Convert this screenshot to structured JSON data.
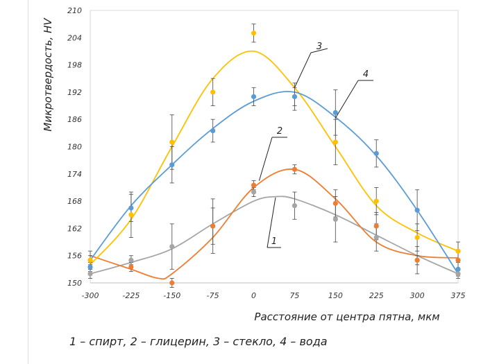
{
  "chart_data": {
    "type": "line",
    "title": "",
    "xlabel": "Расстояние от центра пятна, мкм",
    "ylabel": "Микротвердость, HV",
    "x": [
      -300,
      -225,
      -150,
      -75,
      0,
      75,
      150,
      225,
      300,
      375
    ],
    "x_ticks": [
      "-300",
      "-225",
      "-150",
      "-75",
      "0",
      "75",
      "150",
      "225",
      "300",
      "375"
    ],
    "y_ticks": [
      "150",
      "156",
      "162",
      "168",
      "174",
      "180",
      "186",
      "192",
      "198",
      "204",
      "210"
    ],
    "xlim": [
      -300,
      375
    ],
    "ylim": [
      150,
      210
    ],
    "grid": false,
    "series": [
      {
        "name": "1",
        "color": "#a5a5a5",
        "values": [
          152,
          155,
          158,
          162.5,
          170,
          167,
          164,
          160,
          155,
          152
        ],
        "errors": [
          1.0,
          1.0,
          5.0,
          6.0,
          1.0,
          3.0,
          5.0,
          3.0,
          3.0,
          1.0
        ],
        "trend": [
          [
            -300,
            152
          ],
          [
            -225,
            154.5
          ],
          [
            -150,
            157.5
          ],
          [
            -75,
            163
          ],
          [
            0,
            168
          ],
          [
            40,
            169
          ],
          [
            75,
            168.5
          ],
          [
            150,
            165
          ],
          [
            225,
            160.5
          ],
          [
            300,
            156
          ],
          [
            375,
            152
          ]
        ]
      },
      {
        "name": "2",
        "color": "#ed7d31",
        "values": [
          155,
          153.5,
          150,
          162.5,
          171.5,
          175,
          167.5,
          162.5,
          155,
          155
        ],
        "errors": [
          2.0,
          1.0,
          1.0,
          4.0,
          1.0,
          1.0,
          3.0,
          3.0,
          1.0,
          2.0
        ],
        "trend": [
          [
            -300,
            156
          ],
          [
            -225,
            153
          ],
          [
            -175,
            151
          ],
          [
            -150,
            152
          ],
          [
            -75,
            160
          ],
          [
            0,
            171
          ],
          [
            75,
            175
          ],
          [
            150,
            168.5
          ],
          [
            225,
            159
          ],
          [
            300,
            156
          ],
          [
            375,
            155.5
          ]
        ]
      },
      {
        "name": "3",
        "color": "#ffc000",
        "values": [
          155,
          165,
          181,
          192,
          205,
          191,
          181,
          168,
          160,
          157
        ],
        "errors": [
          1.0,
          5.0,
          6.0,
          3.0,
          2.0,
          3.0,
          5.0,
          3.0,
          3.0,
          2.0
        ],
        "trend": [
          [
            -300,
            154
          ],
          [
            -225,
            164
          ],
          [
            -150,
            180
          ],
          [
            -75,
            195
          ],
          [
            0,
            201
          ],
          [
            75,
            193
          ],
          [
            150,
            180
          ],
          [
            225,
            167
          ],
          [
            300,
            161
          ],
          [
            375,
            157
          ]
        ]
      },
      {
        "name": "4",
        "color": "#5b9bd5",
        "values": [
          153.5,
          166.5,
          176,
          183.5,
          191,
          191,
          187.5,
          178.5,
          166,
          153
        ],
        "errors": [
          1.0,
          3.0,
          4.0,
          2.5,
          2.0,
          2.0,
          5.0,
          3.0,
          4.5,
          1.5
        ],
        "trend": [
          [
            -300,
            155
          ],
          [
            -225,
            167
          ],
          [
            -150,
            176
          ],
          [
            -75,
            184
          ],
          [
            0,
            190
          ],
          [
            75,
            192
          ],
          [
            150,
            186.5
          ],
          [
            225,
            178
          ],
          [
            300,
            166
          ],
          [
            375,
            152
          ]
        ]
      }
    ],
    "legend_text": "1 – спирт, 2 – глицерин, 3 – стекло, 4 – вода"
  }
}
